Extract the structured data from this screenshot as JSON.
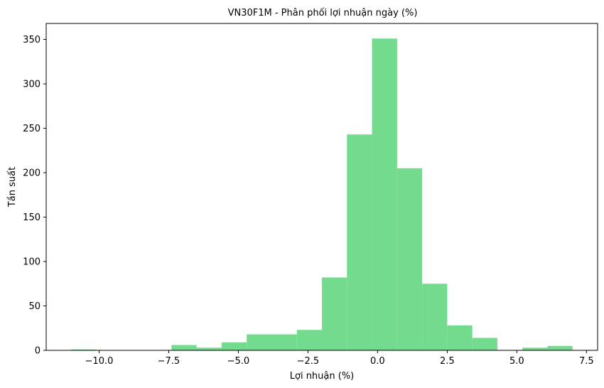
{
  "chart_data": {
    "type": "bar",
    "title": "VN30F1M - Phân phối lợi nhuận ngày (%)",
    "xlabel": "Lợi nhuận (%)",
    "ylabel": "Tần suất",
    "xlim": [
      -11.9,
      7.9
    ],
    "ylim": [
      0,
      368
    ],
    "grid": false,
    "bar_color": "#72db8e",
    "bins": [
      {
        "x0": -11.0,
        "x1": -10.1,
        "count": 1
      },
      {
        "x0": -7.4,
        "x1": -6.5,
        "count": 6
      },
      {
        "x0": -6.5,
        "x1": -5.6,
        "count": 3
      },
      {
        "x0": -5.6,
        "x1": -4.7,
        "count": 9
      },
      {
        "x0": -4.7,
        "x1": -3.8,
        "count": 18
      },
      {
        "x0": -3.8,
        "x1": -2.9,
        "count": 18
      },
      {
        "x0": -2.9,
        "x1": -2.0,
        "count": 23
      },
      {
        "x0": -2.0,
        "x1": -1.1,
        "count": 82
      },
      {
        "x0": -1.1,
        "x1": -0.2,
        "count": 243
      },
      {
        "x0": -0.2,
        "x1": 0.7,
        "count": 351
      },
      {
        "x0": 0.7,
        "x1": 1.6,
        "count": 205
      },
      {
        "x0": 1.6,
        "x1": 2.5,
        "count": 75
      },
      {
        "x0": 2.5,
        "x1": 3.4,
        "count": 28
      },
      {
        "x0": 3.4,
        "x1": 4.3,
        "count": 14
      },
      {
        "x0": 5.2,
        "x1": 6.1,
        "count": 3
      },
      {
        "x0": 6.1,
        "x1": 7.0,
        "count": 5
      }
    ],
    "xticks": [
      {
        "value": -10.0,
        "label": "−10.0"
      },
      {
        "value": -7.5,
        "label": "−7.5"
      },
      {
        "value": -5.0,
        "label": "−5.0"
      },
      {
        "value": -2.5,
        "label": "−2.5"
      },
      {
        "value": 0.0,
        "label": "0.0"
      },
      {
        "value": 2.5,
        "label": "2.5"
      },
      {
        "value": 5.0,
        "label": "5.0"
      },
      {
        "value": 7.5,
        "label": "7.5"
      }
    ],
    "yticks": [
      {
        "value": 0,
        "label": "0"
      },
      {
        "value": 50,
        "label": "50"
      },
      {
        "value": 100,
        "label": "100"
      },
      {
        "value": 150,
        "label": "150"
      },
      {
        "value": 200,
        "label": "200"
      },
      {
        "value": 250,
        "label": "250"
      },
      {
        "value": 300,
        "label": "300"
      },
      {
        "value": 350,
        "label": "350"
      }
    ]
  }
}
